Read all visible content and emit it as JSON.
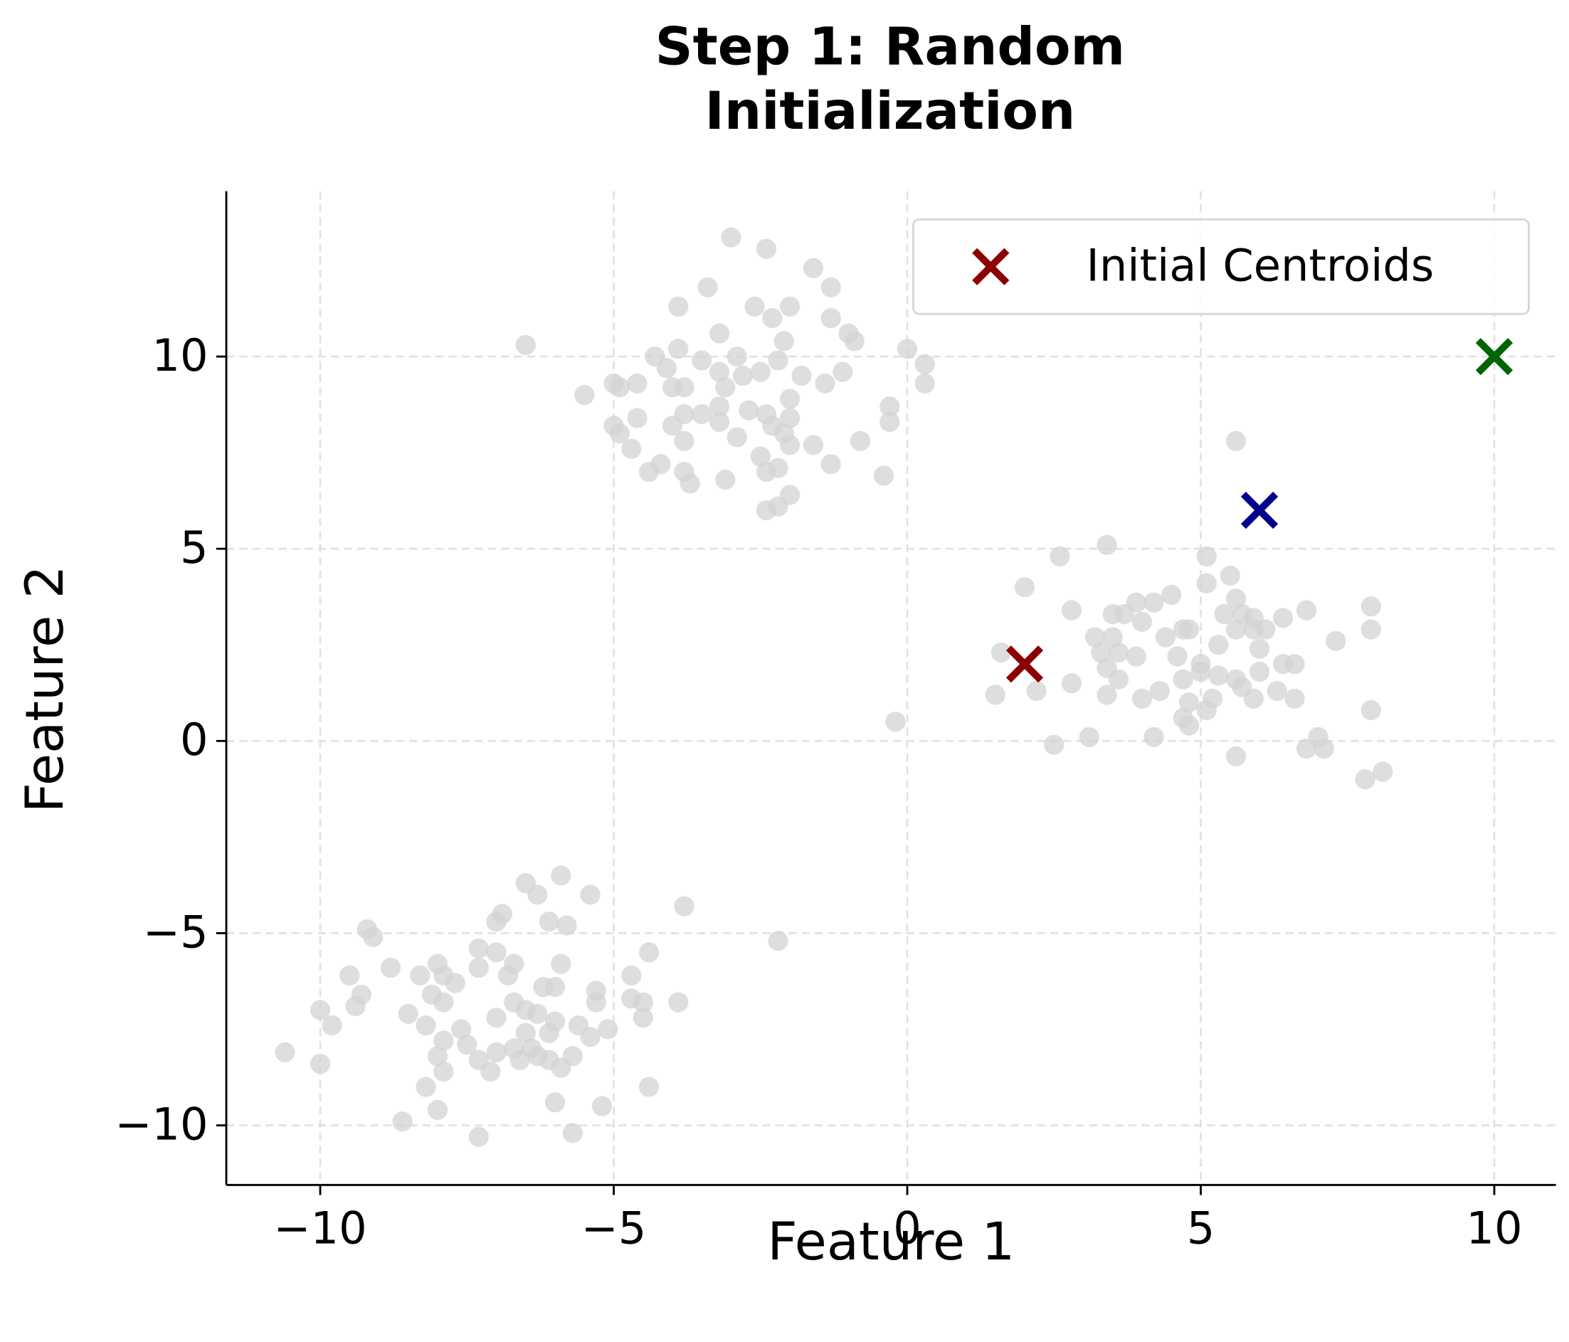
{
  "chart_data": {
    "type": "scatter",
    "title": "Step 1: Random Initialization",
    "xlabel": "Feature 1",
    "ylabel": "Feature 2",
    "xlim": [
      -11.6,
      11.05
    ],
    "ylim": [
      -11.55,
      14.3
    ],
    "xticks": [
      {
        "value": -10,
        "label": "−10"
      },
      {
        "value": -5,
        "label": "−5"
      },
      0,
      5,
      10
    ],
    "yticks": [
      {
        "value": -10,
        "label": "−10"
      },
      {
        "value": -5,
        "label": "−5"
      },
      0,
      5,
      10
    ],
    "grid": true,
    "legend": "upper right",
    "series": [
      {
        "color": "#d3d3d3",
        "marker": "o",
        "x": [
          -3,
          -2.4,
          -1.6,
          -1.3,
          -3.4,
          -3.9,
          -2.6,
          -2.0,
          -2.3,
          -1.3,
          -3.2,
          -2.1,
          -1.0,
          -0.9,
          -3.9,
          0,
          -4.3,
          -3.5,
          -2.9,
          -2.2,
          -4.1,
          -3.2,
          -2.5,
          -1.8,
          -1.1,
          -4.9,
          -5.0,
          -4.6,
          -3.8,
          -2.8,
          -1.4,
          0.3,
          0.3,
          -5.5,
          -4.0,
          -3.1,
          -2.0,
          -3.8,
          -3.5,
          -3.2,
          -2.7,
          -2.4,
          -2.0,
          -0.3,
          -4.9,
          -4.6,
          -5.0,
          -4.0,
          -3.2,
          -2.3,
          -2.1,
          -1.6,
          -0.8,
          -0.3,
          -3.8,
          -2.9,
          -4.7,
          -2.5,
          -1.3,
          -2.0,
          -4.4,
          -4.2,
          -3.8,
          -3.1,
          -2.4,
          -2.2,
          -0.4,
          -3.7,
          -2.0,
          -2.4,
          -2.2,
          -6.5,
          -0.2,
          3.4,
          2.6,
          5.1,
          2.0,
          5.5,
          5.1,
          4.5,
          4.2,
          3.9,
          5.6,
          2.8,
          3.5,
          3.7,
          4.0,
          5.7,
          5.4,
          6.4,
          6.8,
          7.9,
          5.9,
          3.2,
          3.5,
          4.4,
          4.7,
          4.8,
          5.6,
          5.9,
          6.1,
          7.3,
          7.9,
          3.3,
          3.6,
          3.9,
          4.6,
          5.0,
          5.3,
          6.0,
          6.4,
          6.6,
          1.6,
          2.2,
          1.5,
          3.4,
          3.6,
          4.0,
          4.3,
          4.7,
          5.0,
          5.3,
          5.6,
          6.0,
          3.4,
          4.8,
          5.2,
          5.7,
          6.6,
          6.3,
          5.9,
          4.7,
          4.8,
          5.1,
          4.2,
          3.1,
          2.5,
          6.8,
          7.1,
          5.6,
          7.9,
          7.8,
          8.1,
          5.6,
          2.8,
          7.0,
          -5.9,
          -6.5,
          -5.4,
          -6.3,
          -3.8,
          -6.9,
          -7.0,
          -6.1,
          -5.8,
          -9.2,
          -9.1,
          -2.2,
          -7.3,
          -7.0,
          -4.4,
          -8.0,
          -8.8,
          -6.7,
          -5.9,
          -7.3,
          -9.5,
          -8.3,
          -7.9,
          -6.8,
          -4.7,
          -7.7,
          -6.2,
          -6.0,
          -5.3,
          -9.3,
          -8.1,
          -7.9,
          -4.7,
          -9.4,
          -6.7,
          -5.3,
          -4.5,
          -3.9,
          -10.0,
          -8.5,
          -7.0,
          -6.5,
          -6.3,
          -6.0,
          -5.6,
          -4.5,
          -9.8,
          -8.2,
          -7.6,
          -6.5,
          -6.1,
          -5.1,
          -5.4,
          -7.9,
          -7.5,
          -6.7,
          -6.4,
          -7.0,
          -10.6,
          -8.0,
          -6.3,
          -5.7,
          -7.3,
          -6.6,
          -6.1,
          -5.9,
          -10.0,
          -7.9,
          -7.1,
          -8.2,
          -4.4,
          -6.0,
          -5.2,
          -8.0,
          -8.6,
          -5.7,
          -7.3
        ],
        "y": [
          13.1,
          12.8,
          12.3,
          11.8,
          11.8,
          11.3,
          11.3,
          11.3,
          11.0,
          11.0,
          10.6,
          10.4,
          10.6,
          10.4,
          10.2,
          10.2,
          10.0,
          9.9,
          10.0,
          9.9,
          9.7,
          9.6,
          9.6,
          9.5,
          9.6,
          9.2,
          9.3,
          9.3,
          9.2,
          9.5,
          9.3,
          9.8,
          9.3,
          9.0,
          9.2,
          9.2,
          8.9,
          8.5,
          8.5,
          8.7,
          8.6,
          8.5,
          8.4,
          8.7,
          8.0,
          8.4,
          8.2,
          8.2,
          8.3,
          8.2,
          8.0,
          7.7,
          7.8,
          8.3,
          7.8,
          7.9,
          7.6,
          7.4,
          7.2,
          7.7,
          7.0,
          7.2,
          7.0,
          6.8,
          7.0,
          7.1,
          6.9,
          6.7,
          6.4,
          6.0,
          6.1,
          10.3,
          0.5,
          5.1,
          4.8,
          4.8,
          4.0,
          4.3,
          4.1,
          3.8,
          3.6,
          3.6,
          3.7,
          3.4,
          3.3,
          3.3,
          3.1,
          3.3,
          3.3,
          3.2,
          3.4,
          3.5,
          3.2,
          2.7,
          2.7,
          2.7,
          2.9,
          2.9,
          2.9,
          2.9,
          2.9,
          2.6,
          2.9,
          2.3,
          2.3,
          2.2,
          2.2,
          2.0,
          2.5,
          2.4,
          2.0,
          2.0,
          2.3,
          1.3,
          1.2,
          1.9,
          1.6,
          1.1,
          1.3,
          1.6,
          1.8,
          1.7,
          1.6,
          1.8,
          1.2,
          1.0,
          1.1,
          1.4,
          1.1,
          1.3,
          1.1,
          0.6,
          0.4,
          0.8,
          0.1,
          0.1,
          -0.1,
          -0.2,
          -0.2,
          -0.4,
          0.8,
          -1.0,
          -0.8,
          7.8,
          1.5,
          0.1,
          -3.5,
          -3.7,
          -4.0,
          -4.0,
          -4.3,
          -4.5,
          -4.7,
          -4.7,
          -4.8,
          -4.9,
          -5.1,
          -5.2,
          -5.4,
          -5.5,
          -5.5,
          -5.8,
          -5.9,
          -5.8,
          -5.8,
          -5.9,
          -6.1,
          -6.1,
          -6.1,
          -6.1,
          -6.1,
          -6.3,
          -6.4,
          -6.4,
          -6.5,
          -6.6,
          -6.6,
          -6.8,
          -6.7,
          -6.9,
          -6.8,
          -6.8,
          -6.8,
          -6.8,
          -7.0,
          -7.1,
          -7.2,
          -7.0,
          -7.1,
          -7.3,
          -7.4,
          -7.2,
          -7.4,
          -7.4,
          -7.5,
          -7.6,
          -7.6,
          -7.5,
          -7.7,
          -7.8,
          -7.9,
          -8.0,
          -8.0,
          -8.1,
          -8.1,
          -8.2,
          -8.2,
          -8.2,
          -8.3,
          -8.3,
          -8.3,
          -8.5,
          -8.4,
          -8.6,
          -8.6,
          -9.0,
          -9.0,
          -9.4,
          -9.5,
          -9.6,
          -9.9,
          -10.2,
          -10.3
        ]
      },
      {
        "name": "Initial Centroids",
        "marker": "x",
        "colors": [
          "#8b0000",
          "#00008b",
          "#006400"
        ],
        "x": [
          2,
          6,
          10
        ],
        "y": [
          2,
          6,
          10
        ]
      }
    ]
  }
}
